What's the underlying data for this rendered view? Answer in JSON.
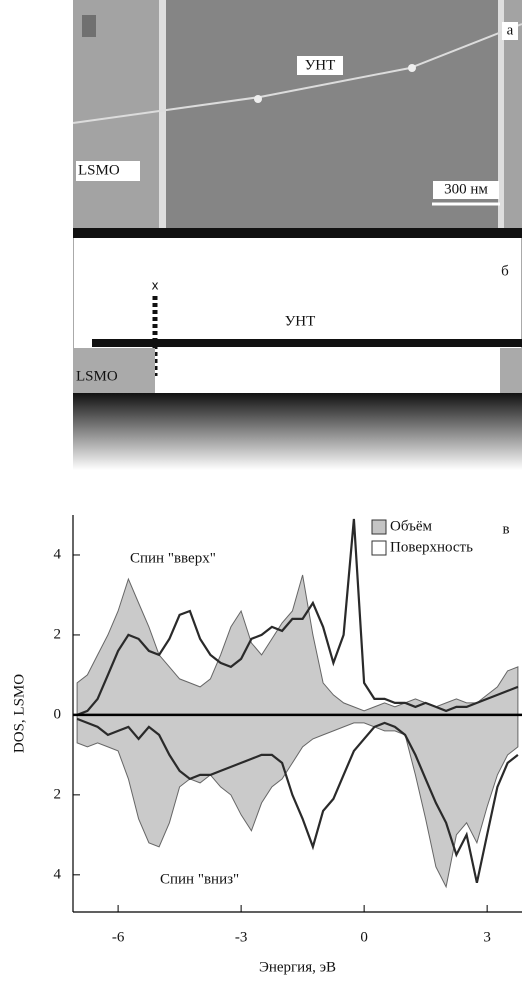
{
  "panel_a": {
    "letter": "а",
    "tube": "УНТ",
    "electrode": "LSMO",
    "scale": "300 нм"
  },
  "panel_b": {
    "letter": "б",
    "marker": "x",
    "tube": "УНТ",
    "electrode": "LSMO"
  },
  "chart_data": {
    "type": "area",
    "letter": "в",
    "xlabel": "Энергия, эВ",
    "ylabel": "DOS, LSMO",
    "annotations": [
      "Спин \"вверх\"",
      "Спин \"вниз\""
    ],
    "x": [
      -7,
      -6.75,
      -6.5,
      -6.25,
      -6,
      -5.75,
      -5.5,
      -5.25,
      -5,
      -4.75,
      -4.5,
      -4.25,
      -4,
      -3.75,
      -3.5,
      -3.25,
      -3,
      -2.75,
      -2.5,
      -2.25,
      -2,
      -1.75,
      -1.5,
      -1.25,
      -1,
      -0.75,
      -0.5,
      -0.25,
      0,
      0.25,
      0.5,
      0.75,
      1,
      1.25,
      1.5,
      1.75,
      2,
      2.25,
      2.5,
      2.75,
      3,
      3.25,
      3.5,
      3.75
    ],
    "series": [
      {
        "name": "Объём",
        "color": "#c4c4c4",
        "fill": true,
        "values": [
          0.8,
          1.0,
          1.5,
          2.0,
          2.6,
          3.4,
          2.8,
          2.2,
          1.5,
          1.2,
          0.9,
          0.8,
          0.7,
          0.9,
          1.5,
          2.2,
          2.6,
          1.8,
          1.5,
          1.9,
          2.3,
          2.6,
          3.5,
          2.0,
          0.8,
          0.5,
          0.3,
          0.2,
          0.1,
          0.2,
          0.3,
          0.2,
          0.3,
          0.4,
          0.3,
          0.2,
          0.3,
          0.4,
          0.3,
          0.3,
          0.5,
          0.7,
          1.1,
          1.2
        ],
        "values_down": [
          -0.7,
          -0.8,
          -0.7,
          -0.8,
          -0.9,
          -1.6,
          -2.6,
          -3.2,
          -3.3,
          -2.7,
          -1.8,
          -1.6,
          -1.7,
          -1.5,
          -1.8,
          -2.0,
          -2.5,
          -2.9,
          -2.2,
          -1.8,
          -1.6,
          -1.2,
          -0.8,
          -0.6,
          -0.5,
          -0.4,
          -0.3,
          -0.2,
          -0.2,
          -0.3,
          -0.4,
          -0.4,
          -0.5,
          -1.5,
          -2.6,
          -3.8,
          -4.3,
          -3.0,
          -2.7,
          -3.2,
          -2.3,
          -1.5,
          -1.0,
          -0.8
        ]
      },
      {
        "name": "Поверхность",
        "color": "#2a2a2a",
        "fill": false,
        "values": [
          0,
          0.1,
          0.4,
          1.0,
          1.6,
          2.0,
          1.9,
          1.6,
          1.5,
          1.9,
          2.5,
          2.6,
          1.9,
          1.5,
          1.3,
          1.2,
          1.4,
          1.9,
          2.0,
          2.2,
          2.1,
          2.4,
          2.4,
          2.8,
          2.2,
          1.3,
          2.0,
          4.9,
          0.8,
          0.4,
          0.4,
          0.3,
          0.3,
          0.2,
          0.3,
          0.2,
          0.1,
          0.2,
          0.2,
          0.3,
          0.4,
          0.5,
          0.6,
          0.7
        ],
        "values_down": [
          -0.1,
          -0.2,
          -0.3,
          -0.5,
          -0.4,
          -0.3,
          -0.6,
          -0.3,
          -0.5,
          -1.0,
          -1.4,
          -1.6,
          -1.5,
          -1.5,
          -1.4,
          -1.3,
          -1.2,
          -1.1,
          -1.0,
          -1.0,
          -1.2,
          -2.0,
          -2.6,
          -3.3,
          -2.4,
          -2.1,
          -1.5,
          -0.9,
          -0.6,
          -0.3,
          -0.2,
          -0.3,
          -0.5,
          -1.0,
          -1.6,
          -2.2,
          -2.7,
          -3.5,
          -3.0,
          -4.2,
          -3.0,
          -1.8,
          -1.2,
          -1.0
        ]
      }
    ],
    "xlim": [
      -7.1,
      3.85
    ],
    "ylim": [
      -4.93,
      5.0
    ],
    "xticks": [
      -6,
      -3,
      0,
      3
    ],
    "yticks": [
      {
        "value": -4,
        "label": "4"
      },
      {
        "value": -2,
        "label": "2"
      },
      0,
      2,
      4
    ]
  }
}
